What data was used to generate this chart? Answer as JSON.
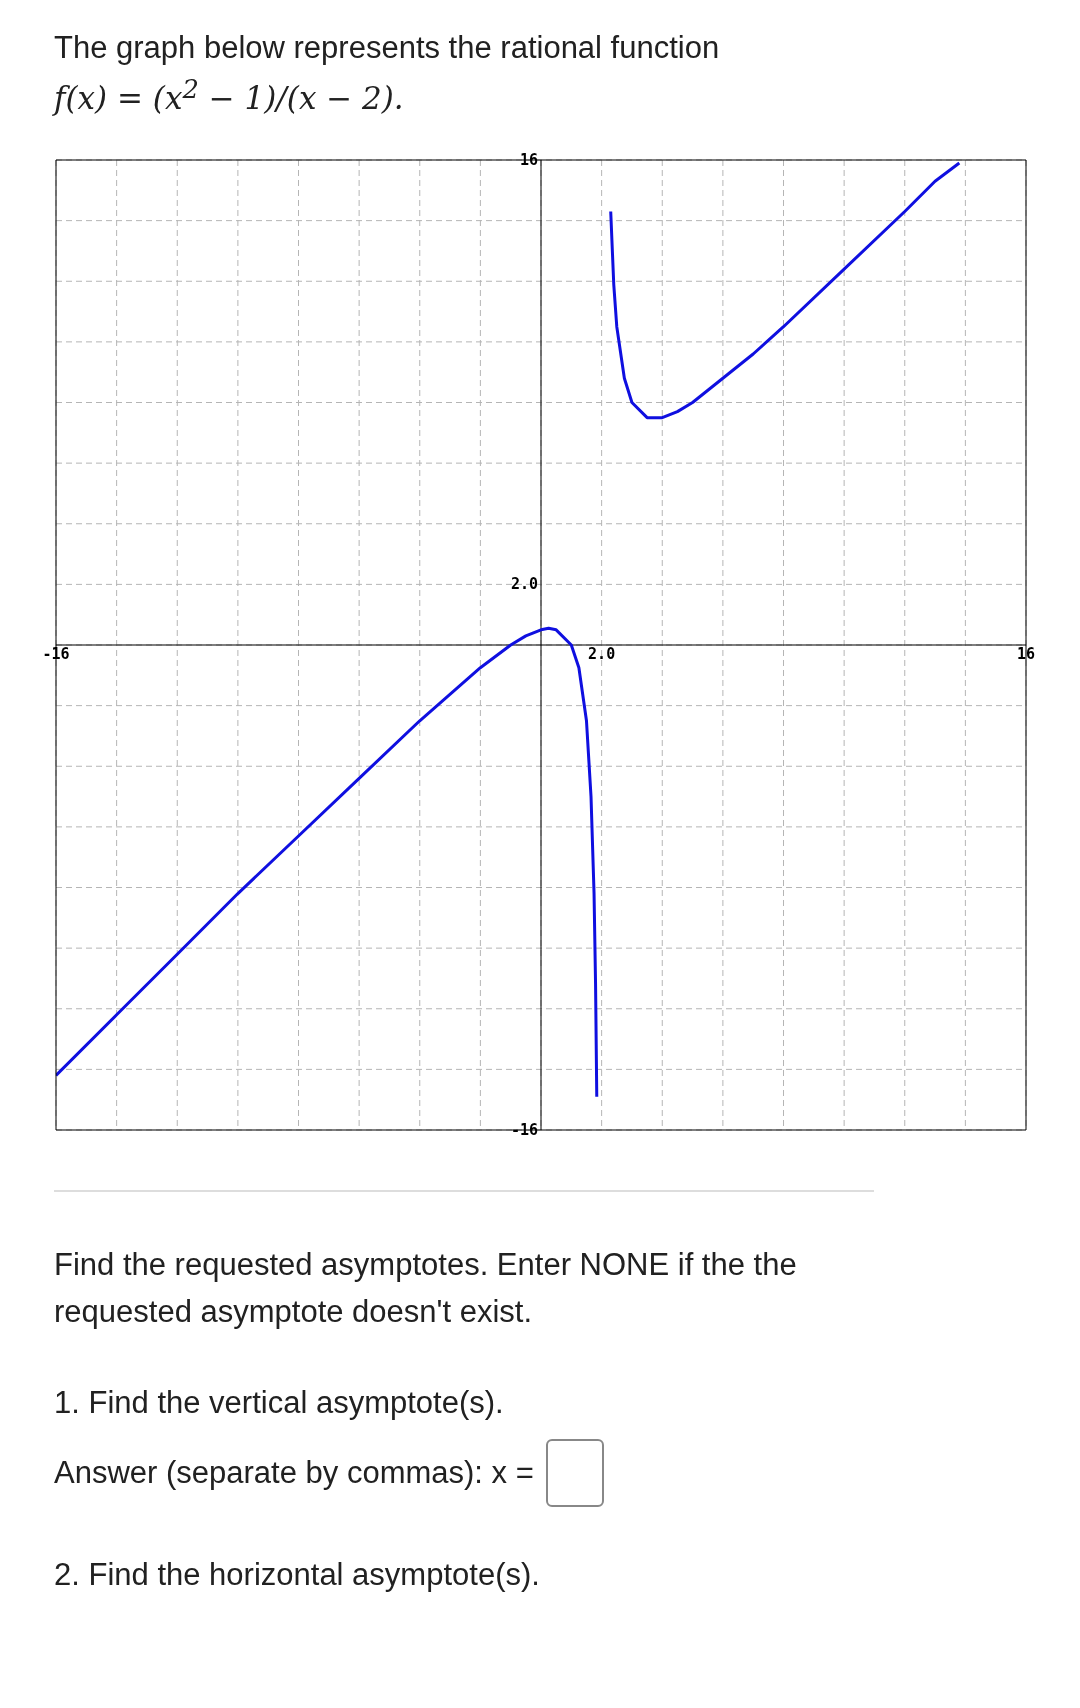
{
  "chart_data": {
    "type": "line",
    "title": "The graph below represents the rational function",
    "subtitle": "f(x) = (x$^{2}$ − 1)/(x − 2).",
    "x": [
      -16,
      -14,
      -12,
      -10,
      -8,
      -6,
      -4,
      -2,
      -1,
      -0.5,
      0,
      0.25,
      0.5,
      1,
      1.25,
      1.5,
      1.65,
      1.75,
      1.8,
      1.84,
      2,
      2.3,
      2.4,
      2.5,
      2.75,
      3,
      3.5,
      4,
      4.5,
      5,
      6,
      7,
      8,
      10,
      12,
      13,
      13.8
    ],
    "series": [
      {
        "color": "#0f0fe0",
        "values": [
          -14.2,
          -12.2,
          -10.2,
          -8.2,
          -6.3,
          -4.4,
          -2.5,
          -0.75,
          0,
          0.3,
          0.5,
          0.55,
          0.5,
          0,
          -0.75,
          -2.5,
          -5,
          -8.2,
          -11.2,
          -14.9,
          null,
          14.3,
          11.9,
          10.5,
          8.8,
          8,
          7.5,
          7.5,
          7.7,
          8,
          8.8,
          9.6,
          10.5,
          12.4,
          14.3,
          15.3,
          15.9
        ]
      }
    ],
    "xlim": [
      -16,
      16
    ],
    "ylim": [
      -16,
      16
    ],
    "xticks": [
      -16,
      {
        "value": -14,
        "label": null
      },
      {
        "value": -12,
        "label": null
      },
      {
        "value": -10,
        "label": null
      },
      {
        "value": -8,
        "label": null
      },
      {
        "value": -6,
        "label": null
      },
      {
        "value": -4,
        "label": null
      },
      {
        "value": -2,
        "label": null
      },
      {
        "value": 0,
        "label": null
      },
      {
        "value": 2,
        "label": "2.0"
      },
      {
        "value": 4,
        "label": null
      },
      {
        "value": 6,
        "label": null
      },
      {
        "value": 8,
        "label": null
      },
      {
        "value": 10,
        "label": null
      },
      {
        "value": 12,
        "label": null
      },
      {
        "value": 14,
        "label": null
      },
      16
    ],
    "yticks": [
      -16,
      {
        "value": -14,
        "label": null
      },
      {
        "value": -12,
        "label": null
      },
      {
        "value": -10,
        "label": null
      },
      {
        "value": -8,
        "label": null
      },
      {
        "value": -6,
        "label": null
      },
      {
        "value": -4,
        "label": null
      },
      {
        "value": -2,
        "label": null
      },
      {
        "value": 0,
        "label": null
      },
      {
        "value": 2,
        "label": "2.0"
      },
      {
        "value": 4,
        "label": null
      },
      {
        "value": 6,
        "label": null
      },
      {
        "value": 8,
        "label": null
      },
      {
        "value": 10,
        "label": null
      },
      {
        "value": 12,
        "label": null
      },
      {
        "value": 14,
        "label": null
      },
      16
    ],
    "grid": true,
    "marker": "none",
    "line_style": "solid",
    "annotations": [
      "Find the requested asymptotes. Enter NONE if the the requested asymptote doesn't exist.",
      "1. Find the vertical asymptote(s).",
      "Answer (separate by commas): x =",
      "2. Find the horizontal asymptote(s)."
    ]
  }
}
